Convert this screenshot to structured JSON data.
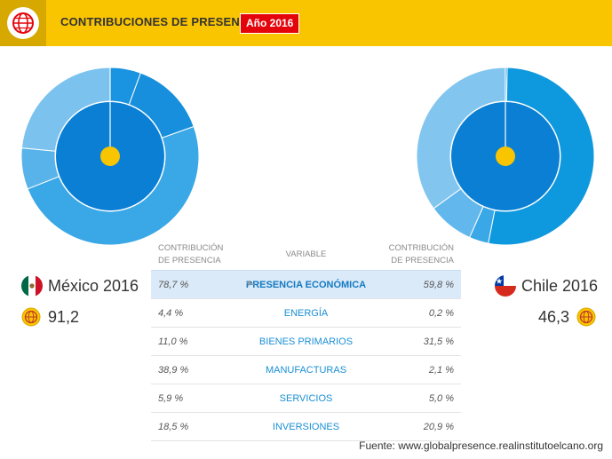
{
  "header": {
    "title": "CONTRIBUCIONES DE PRESENCIA",
    "year_badge": "Año 2016",
    "logo_icon": "globe-icon",
    "background": "#f9c400",
    "badge_color": "#e3050b"
  },
  "left_country": {
    "name": "México 2016",
    "score": "91,2",
    "flag_icon": "mexico-flag-icon",
    "score_icon": "globe-badge-icon",
    "donut": {
      "inner_share": 78.7,
      "outer_segments": [
        4.4,
        11.0,
        38.9,
        5.9,
        18.5
      ],
      "colors": {
        "inner": "#0a7fd4",
        "segments": [
          "#1a93e0",
          "#178fdc",
          "#3aa7e6",
          "#58b3ea",
          "#7bc2ee"
        ]
      }
    }
  },
  "right_country": {
    "name": "Chile 2016",
    "score": "46,3",
    "flag_icon": "chile-flag-icon",
    "score_icon": "globe-badge-icon",
    "donut": {
      "inner_share": 59.8,
      "outer_segments": [
        0.2,
        31.5,
        2.1,
        5.0,
        20.9
      ],
      "colors": {
        "inner": "#0a7fd4",
        "segments": [
          "#1a93e0",
          "#0e98de",
          "#3aa7e6",
          "#62b8ec",
          "#82c5ee"
        ]
      }
    }
  },
  "table": {
    "col_left": "CONTRIBUCIÓN DE PRESENCIA",
    "col_middle": "VARIABLE",
    "col_right": "CONTRIBUCIÓN DE PRESENCIA",
    "rows": [
      {
        "left": "78,7 %",
        "variable": "PRESENCIA ECONÓMICA",
        "right": "59,8 %"
      },
      {
        "left": "4,4 %",
        "variable": "ENERGÍA",
        "right": "0,2 %"
      },
      {
        "left": "11,0 %",
        "variable": "BIENES PRIMARIOS",
        "right": "31,5 %"
      },
      {
        "left": "38,9 %",
        "variable": "MANUFACTURAS",
        "right": "2,1 %"
      },
      {
        "left": "5,9 %",
        "variable": "SERVICIOS",
        "right": "5,0 %"
      },
      {
        "left": "18,5 %",
        "variable": "INVERSIONES",
        "right": "20,9 %"
      }
    ]
  },
  "footer": {
    "source": "Fuente: www.globalpresence.realinstitutoelcano.org"
  }
}
